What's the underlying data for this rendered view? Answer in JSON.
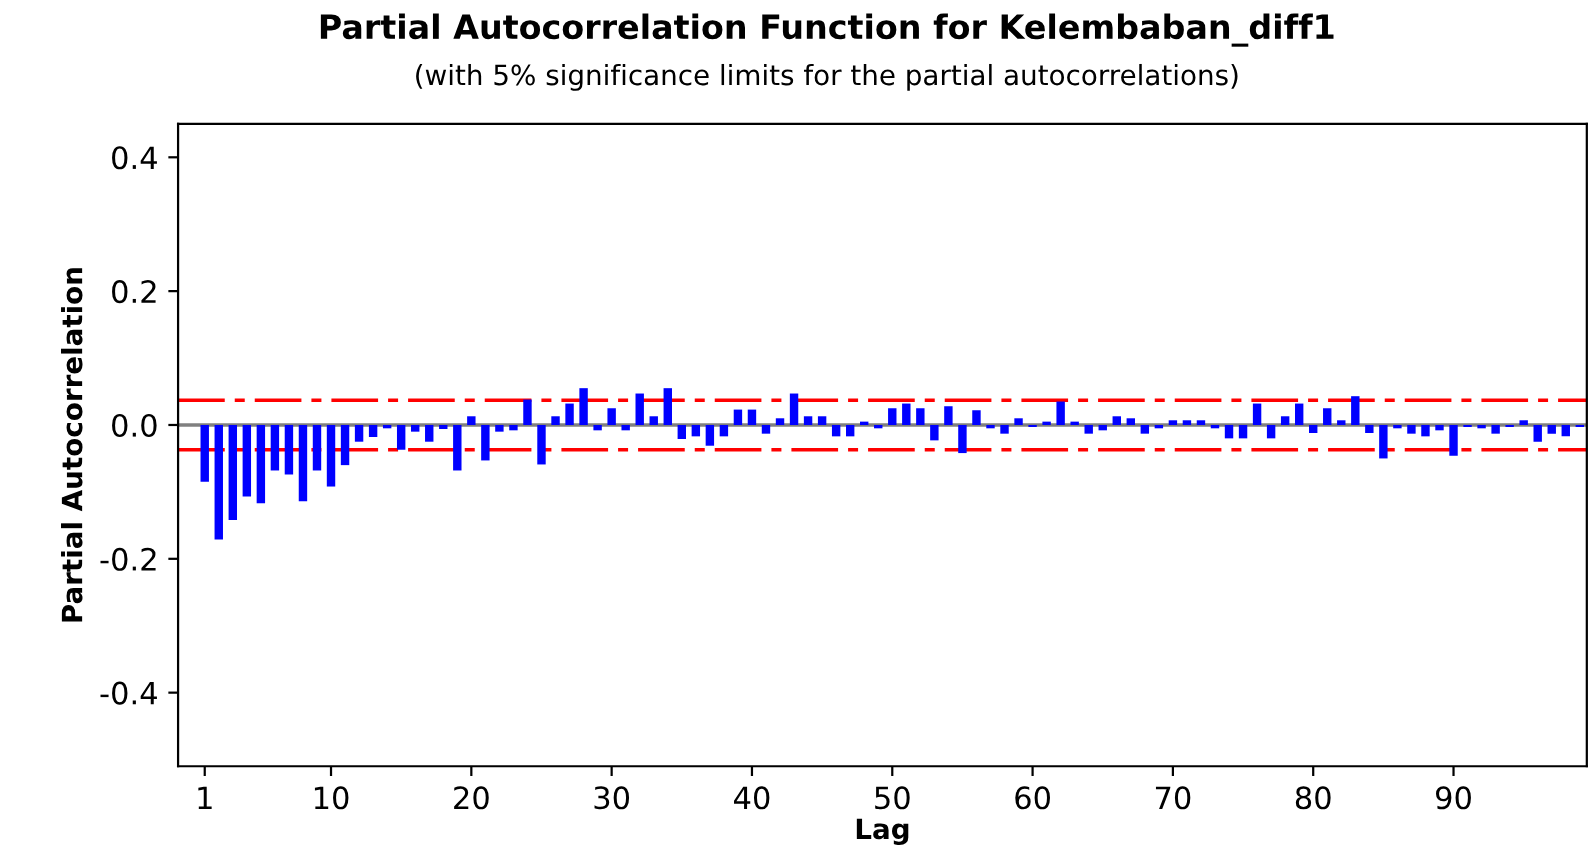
{
  "chart_data": {
    "type": "bar",
    "title": "Partial Autocorrelation Function for Kelembaban_diff1",
    "subtitle": "(with 5% significance limits for the partial autocorrelations)",
    "xlabel": "Lag",
    "ylabel": "Partial Autocorrelation",
    "x": [
      1,
      2,
      3,
      4,
      5,
      6,
      7,
      8,
      9,
      10,
      11,
      12,
      13,
      14,
      15,
      16,
      17,
      18,
      19,
      20,
      21,
      22,
      23,
      24,
      25,
      26,
      27,
      28,
      29,
      30,
      31,
      32,
      33,
      34,
      35,
      36,
      37,
      38,
      39,
      40,
      41,
      42,
      43,
      44,
      45,
      46,
      47,
      48,
      49,
      50,
      51,
      52,
      53,
      54,
      55,
      56,
      57,
      58,
      59,
      60,
      61,
      62,
      63,
      64,
      65,
      66,
      67,
      68,
      69,
      70,
      71,
      72,
      73,
      74,
      75,
      76,
      77,
      78,
      79,
      80,
      81,
      82,
      83,
      84,
      85,
      86,
      87,
      88,
      89,
      90,
      91,
      92,
      93,
      94,
      95,
      96,
      97,
      98,
      99
    ],
    "series": [
      {
        "color": "#0000ff",
        "values": [
          -0.085,
          -0.171,
          -0.142,
          -0.107,
          -0.117,
          -0.068,
          -0.074,
          -0.114,
          -0.068,
          -0.092,
          -0.06,
          -0.025,
          -0.018,
          -0.005,
          -0.037,
          -0.01,
          -0.025,
          -0.006,
          -0.068,
          0.013,
          -0.053,
          -0.01,
          -0.008,
          0.038,
          -0.059,
          0.013,
          0.032,
          0.055,
          -0.008,
          0.025,
          -0.008,
          0.047,
          0.013,
          0.055,
          -0.021,
          -0.017,
          -0.031,
          -0.017,
          0.023,
          0.023,
          -0.013,
          0.01,
          0.047,
          0.013,
          0.013,
          -0.017,
          -0.017,
          0.005,
          -0.005,
          0.025,
          0.032,
          0.025,
          -0.023,
          0.028,
          -0.042,
          0.022,
          -0.005,
          -0.013,
          0.01,
          -0.003,
          0.005,
          0.035,
          0.005,
          -0.013,
          -0.008,
          0.013,
          0.01,
          -0.013,
          -0.005,
          0.007,
          0.007,
          0.007,
          -0.005,
          -0.02,
          -0.02,
          0.032,
          -0.02,
          0.013,
          0.032,
          -0.012,
          0.025,
          0.007,
          0.043,
          -0.012,
          -0.05,
          -0.005,
          -0.013,
          -0.017,
          -0.008,
          -0.046,
          -0.003,
          -0.005,
          -0.013,
          -0.003,
          0.007,
          -0.025,
          -0.013,
          -0.017,
          -0.003
        ]
      }
    ],
    "xlim": [
      -0.9,
      99.5
    ],
    "xticks": [
      1,
      10,
      20,
      30,
      40,
      50,
      60,
      70,
      80,
      90
    ],
    "ylim": [
      -0.51,
      0.45
    ],
    "yticks": [
      -0.4,
      -0.2,
      {
        "value": 0,
        "label": "0.0"
      },
      0.2,
      0.4
    ],
    "ref_lines": [
      {
        "axis": "y",
        "value": 0,
        "color": "#808080",
        "line_style": "solid"
      },
      {
        "axis": "y",
        "value": 0.037,
        "color": "#ff0000",
        "line_style": "dashed"
      },
      {
        "axis": "y",
        "value": -0.037,
        "color": "#ff0000",
        "line_style": "dashed"
      }
    ],
    "grid": false,
    "legend": false
  }
}
